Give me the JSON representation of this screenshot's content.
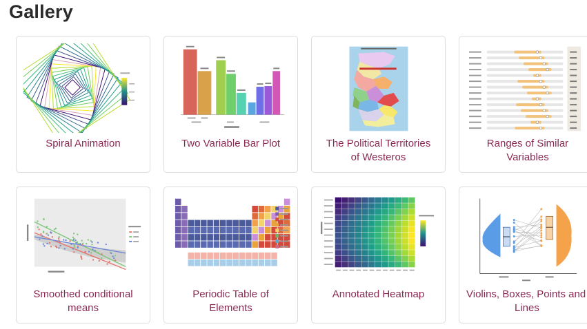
{
  "page": {
    "title": "Gallery"
  },
  "cards": [
    {
      "caption": "Spiral Animation",
      "thumbnail": "spiral-square-thumbnail"
    },
    {
      "caption": "Two Variable Bar Plot",
      "thumbnail": "bar-plot-thumbnail"
    },
    {
      "caption": "The Political Territories of Westeros",
      "thumbnail": "westeros-map-thumbnail"
    },
    {
      "caption": "Ranges of Similar Variables",
      "thumbnail": "ranges-dot-plot-thumbnail"
    },
    {
      "caption": "Smoothed conditional means",
      "thumbnail": "scatter-smooth-thumbnail"
    },
    {
      "caption": "Periodic Table of Elements",
      "thumbnail": "periodic-table-thumbnail"
    },
    {
      "caption": "Annotated Heatmap",
      "thumbnail": "heatmap-thumbnail"
    },
    {
      "caption": "Violins, Boxes, Points and Lines",
      "thumbnail": "violin-plot-thumbnail"
    }
  ],
  "colors": {
    "caption": "#8a2a52",
    "card_border": "#dcdcdc",
    "title": "#2b2b2b"
  }
}
